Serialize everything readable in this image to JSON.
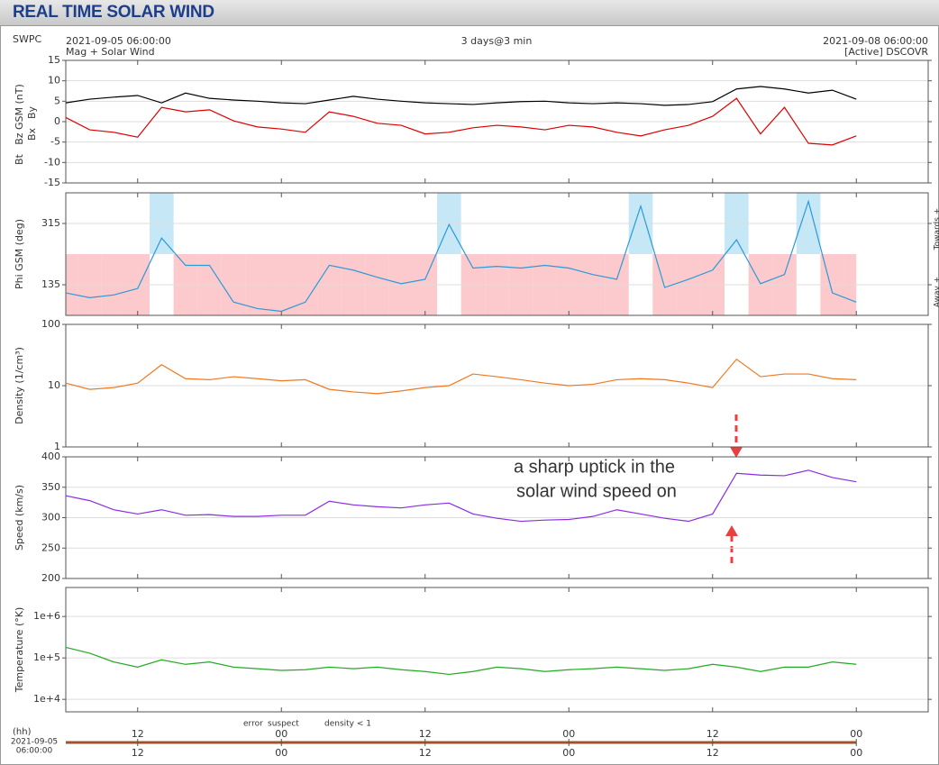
{
  "header": {
    "title": "REAL TIME SOLAR WIND",
    "source": "SWPC",
    "start": "2021-09-05 06:00:00",
    "span": "3 days@3 min",
    "end": "2021-09-08 06:00:00",
    "subtitle": "Mag + Solar Wind",
    "satellite": "[Active] DSCOVR"
  },
  "chart_data": {
    "type": "line",
    "x": [
      "2021-09-05T06:00",
      "2021-09-05T08:00",
      "2021-09-05T10:00",
      "2021-09-05T12:00",
      "2021-09-05T14:00",
      "2021-09-05T16:00",
      "2021-09-05T18:00",
      "2021-09-05T20:00",
      "2021-09-05T22:00",
      "2021-09-06T00:00",
      "2021-09-06T02:00",
      "2021-09-06T04:00",
      "2021-09-06T06:00",
      "2021-09-06T08:00",
      "2021-09-06T10:00",
      "2021-09-06T12:00",
      "2021-09-06T14:00",
      "2021-09-06T16:00",
      "2021-09-06T18:00",
      "2021-09-06T20:00",
      "2021-09-06T22:00",
      "2021-09-07T00:00",
      "2021-09-07T02:00",
      "2021-09-07T04:00",
      "2021-09-07T06:00",
      "2021-09-07T08:00",
      "2021-09-07T10:00",
      "2021-09-07T12:00",
      "2021-09-07T14:00",
      "2021-09-07T16:00",
      "2021-09-07T18:00",
      "2021-09-07T20:00",
      "2021-09-07T22:00",
      "2021-09-08T00:00"
    ],
    "xlim": [
      "2021-09-05T06:00",
      "2021-09-08T06:00"
    ],
    "xticks": [
      {
        "value": "2021-09-05T12:00",
        "label": "12"
      },
      {
        "value": "2021-09-06T00:00",
        "label": "00"
      },
      {
        "value": "2021-09-06T12:00",
        "label": "12"
      },
      {
        "value": "2021-09-07T00:00",
        "label": "00"
      },
      {
        "value": "2021-09-07T12:00",
        "label": "12"
      },
      {
        "value": "2021-09-08T00:00",
        "label": "00"
      }
    ],
    "xlabel": "(hh)",
    "x_origin": [
      "2021-09-05",
      "06:00:00"
    ],
    "grid": true,
    "panels": [
      {
        "ylabels": [
          {
            "text": "Bt",
            "color": "#000000"
          },
          {
            "text": "Bz GSM (nT)",
            "color": "#dd0000"
          },
          {
            "text": "Bx",
            "color": "#9a6fd0"
          },
          {
            "text": "By",
            "color": "#1aa0d0"
          }
        ],
        "ylim": [
          -15,
          15
        ],
        "yticks": [
          -15,
          -10,
          -5,
          0,
          5,
          10,
          15
        ],
        "series": [
          {
            "name": "Bt",
            "color": "#000000",
            "values": [
              4.6,
              5.5,
              6,
              6.4,
              4.6,
              7,
              5.7,
              5.3,
              5,
              4.6,
              4.4,
              5.3,
              6.2,
              5.5,
              5,
              4.6,
              4.4,
              4.2,
              4.6,
              4.9,
              5,
              4.6,
              4.4,
              4.6,
              4.4,
              4,
              4.2,
              4.9,
              8,
              8.6,
              8,
              7,
              7.7,
              5.5
            ]
          },
          {
            "name": "Bz GSM (nT)",
            "color": "#dd0000",
            "values": [
              1,
              -2,
              -2.6,
              -3.8,
              3.5,
              2.4,
              2.9,
              0.2,
              -1.3,
              -1.8,
              -2.6,
              2.4,
              1.3,
              -0.4,
              -0.9,
              -3,
              -2.6,
              -1.5,
              -0.9,
              -1.3,
              -2,
              -0.9,
              -1.3,
              -2.6,
              -3.5,
              -2,
              -0.9,
              1.3,
              5.7,
              -3,
              3.5,
              -5.3,
              -5.7,
              -3.5
            ]
          }
        ]
      },
      {
        "ylabels": [
          {
            "text": "Phi GSM (deg)",
            "color": "#1aa0d0"
          }
        ],
        "side_labels": [
          "Towards +",
          "Away +"
        ],
        "ylim": [
          45,
          405
        ],
        "yticks": [
          135,
          315
        ],
        "sectors": true,
        "series": [
          {
            "name": "Phi GSM (deg)",
            "color": "#2a9ad8",
            "values": [
              111,
              97,
              105,
              124,
              272,
              192,
              192,
              84,
              65,
              57,
              84,
              192,
              178,
              157,
              138,
              151,
              312,
              184,
              189,
              184,
              192,
              184,
              165,
              151,
              366,
              127,
              151,
              178,
              267,
              138,
              165,
              380,
              111,
              84
            ]
          }
        ]
      },
      {
        "ylabels": [
          {
            "text": "Density (1/cm³)",
            "color": "#f07820"
          }
        ],
        "log": true,
        "ylim": [
          1,
          100
        ],
        "yticks": [
          1,
          10,
          100
        ],
        "series": [
          {
            "name": "Density (1/cm³)",
            "color": "#f07820",
            "values": [
              11,
              8.7,
              9.3,
              11,
              22,
              13,
              12.5,
              14,
              13,
              12,
              12.5,
              8.7,
              7.9,
              7.4,
              8.2,
              9.3,
              10,
              15.5,
              14,
              12.5,
              11,
              10,
              10.5,
              12.5,
              13,
              12.5,
              11,
              9.3,
              27,
              14,
              15.5,
              15.5,
              13,
              12.5
            ]
          }
        ]
      },
      {
        "ylabels": [
          {
            "text": "Speed (km/s)",
            "color": "#8a2be2"
          }
        ],
        "ylim": [
          200,
          400
        ],
        "yticks": [
          200,
          250,
          300,
          350,
          400
        ],
        "series": [
          {
            "name": "Speed (km/s)",
            "color": "#8a2be2",
            "values": [
              336,
              328,
              313,
              306,
              313,
              304,
              305,
              302,
              302,
              304,
              304,
              327,
              321,
              318,
              316,
              321,
              324,
              306,
              299,
              294,
              296,
              297,
              302,
              313,
              306,
              299,
              294,
              306,
              373,
              370,
              369,
              378,
              366,
              359
            ]
          }
        ]
      },
      {
        "ylabels": [
          {
            "text": "Temperature (°K)",
            "color": "#22aa22"
          }
        ],
        "log": true,
        "ylim": [
          5000,
          5000000
        ],
        "yticks": [
          {
            "value": 10000,
            "label": "1e+4"
          },
          {
            "value": 100000,
            "label": "1e+5"
          },
          {
            "value": 1000000,
            "label": "1e+6"
          }
        ],
        "series": [
          {
            "name": "Temperature (°K)",
            "color": "#22aa22",
            "values": [
              180000,
              130000,
              80000,
              60000,
              90000,
              70000,
              80000,
              60000,
              55000,
              50000,
              52000,
              60000,
              55000,
              60000,
              52000,
              47000,
              40000,
              47000,
              60000,
              55000,
              47000,
              52000,
              55000,
              60000,
              55000,
              50000,
              55000,
              70000,
              60000,
              47000,
              60000,
              60000,
              80000,
              70000
            ]
          }
        ]
      }
    ],
    "flags": [
      {
        "text": "error",
        "color": "#cc2222"
      },
      {
        "text": "suspect",
        "color": "#c8b400"
      },
      {
        "text": "density < 1",
        "color": "#e07a20"
      }
    ],
    "annotation": [
      "a sharp uptick in the",
      "solar wind speed on"
    ]
  }
}
